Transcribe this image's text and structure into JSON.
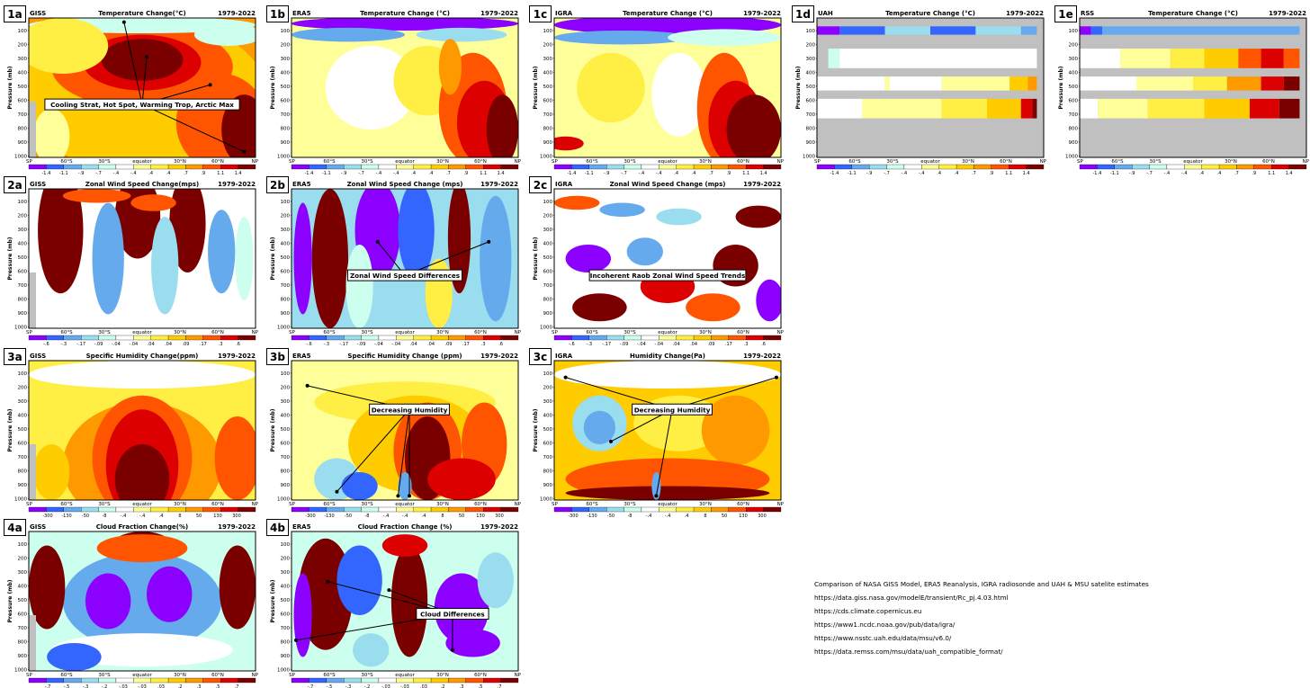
{
  "latitude_ticks": [
    "SP",
    "60°S",
    "30°S",
    "equator",
    "30°N",
    "60°N",
    "NP"
  ],
  "pressure_ticks": [
    "100",
    "200",
    "300",
    "400",
    "500",
    "600",
    "700",
    "800",
    "900",
    "1000"
  ],
  "y_axis_label": "Pressure (mb)",
  "colors": {
    "missing": "#c0c0c0",
    "palette": [
      "#8b00ff",
      "#3366ff",
      "#66aaee",
      "#99ddee",
      "#ccffee",
      "#ffffff",
      "#ffff99",
      "#ffee44",
      "#ffcc00",
      "#ff9900",
      "#ff5500",
      "#dd0000",
      "#7a0000"
    ]
  },
  "panels": [
    {
      "id": "1a",
      "source": "GISS",
      "title": "Temperature Change(°C)",
      "period": "1979-2022",
      "scale_labels": [
        "-1.4",
        "-1.1",
        "-.9",
        "-.7",
        "-.4",
        "-.4",
        ".4",
        ".4",
        ".7",
        ".9",
        "1.1",
        "1.4"
      ],
      "annotation": "Cooling Strat, Hot Spot, Warming Trop, Arctic Max"
    },
    {
      "id": "1b",
      "source": "ERA5",
      "title": "Temperature Change (°C)",
      "period": "1979-2022",
      "scale_labels": [
        "-1.4",
        "-1.1",
        "-.9",
        "-.7",
        "-.4",
        "-.4",
        ".4",
        ".4",
        ".7",
        ".9",
        "1.1",
        "1.4"
      ],
      "annotation": ""
    },
    {
      "id": "1c",
      "source": "IGRA",
      "title": "Temperature Change (°C)",
      "period": "1979-2022",
      "scale_labels": [
        "-1.4",
        "-1.1",
        "-.9",
        "-.7",
        "-.4",
        "-.4",
        ".4",
        ".4",
        ".7",
        ".9",
        "1.1",
        "1.4"
      ],
      "annotation": ""
    },
    {
      "id": "1d",
      "source": "UAH",
      "title": "Temperature Change (°C)",
      "period": "1979-2022",
      "scale_labels": [
        "-1.4",
        "-1.1",
        "-.9",
        "-.7",
        "-.4",
        "-.4",
        ".4",
        ".4",
        ".7",
        ".9",
        "1.1",
        "1.4"
      ],
      "annotation": ""
    },
    {
      "id": "1e",
      "source": "RSS",
      "title": "Temperature Change (°C)",
      "period": "1979-2022",
      "scale_labels": [
        "-1.4",
        "-1.1",
        "-.9",
        "-.7",
        "-.4",
        "-.4",
        ".4",
        ".4",
        ".7",
        ".9",
        "1.1",
        "1.4"
      ],
      "annotation": ""
    },
    {
      "id": "2a",
      "source": "GISS",
      "title": "Zonal Wind Speed Change(mps)",
      "period": "1979-2022",
      "scale_labels": [
        "-.6",
        "-.3",
        "-.17",
        "-.09",
        "-.04",
        "-.04",
        ".04",
        ".04",
        ".09",
        ".17",
        ".3",
        ".6"
      ],
      "annotation": ""
    },
    {
      "id": "2b",
      "source": "ERA5",
      "title": "Zonal Wind Speed Change (mps)",
      "period": "1979-2022",
      "scale_labels": [
        "-.6",
        "-.3",
        "-.17",
        "-.09",
        "-.04",
        "-.04",
        ".04",
        ".04",
        ".09",
        ".17",
        ".3",
        ".6"
      ],
      "annotation": "Zonal Wind Speed Differences"
    },
    {
      "id": "2c",
      "source": "IGRA",
      "title": "Zonal Wind Speed Change (mps)",
      "period": "1979-2022",
      "scale_labels": [
        "-.6",
        "-.3",
        "-.17",
        "-.09",
        "-.04",
        "-.04",
        ".04",
        ".04",
        ".09",
        ".17",
        ".3",
        ".6"
      ],
      "annotation": "Incoherent Raob Zonal Wind Speed Trends"
    },
    {
      "id": "3a",
      "source": "GISS",
      "title": "Specific Humidity Change(ppm)",
      "period": "1979-2022",
      "scale_labels": [
        "-300",
        "-130",
        "-50",
        "-8",
        "-.4",
        "-.4",
        ".4",
        "8",
        "50",
        "130",
        "300"
      ],
      "annotation": ""
    },
    {
      "id": "3b",
      "source": "ERA5",
      "title": "Specific Humidity Change (ppm)",
      "period": "1979-2022",
      "scale_labels": [
        "-300",
        "-130",
        "-50",
        "-8",
        "-.4",
        "-.4",
        ".4",
        "8",
        "50",
        "130",
        "300"
      ],
      "annotation": "Decreasing Humidity"
    },
    {
      "id": "3c",
      "source": "IGRA",
      "title": "Humidity Change(Pa)",
      "period": "1979-2022",
      "scale_labels": [
        "-300",
        "-130",
        "-50",
        "-8",
        "-.4",
        "-.4",
        ".4",
        "8",
        "50",
        "130",
        "300"
      ],
      "annotation": "Decreasing Humidity"
    },
    {
      "id": "4a",
      "source": "GISS",
      "title": "Cloud Fraction Change(%)",
      "period": "1979-2022",
      "scale_labels": [
        "-.7",
        "-.5",
        "-.3",
        "-.2",
        "-.03",
        "-.03",
        ".03",
        ".2",
        ".3",
        ".5",
        ".7"
      ],
      "annotation": ""
    },
    {
      "id": "4b",
      "source": "ERA5",
      "title": "Cloud Fraction Change (%)",
      "period": "1979-2022",
      "scale_labels": [
        "-.7",
        "-.5",
        "-.3",
        "-.2",
        "-.03",
        "-.03",
        ".03",
        ".2",
        ".3",
        ".5",
        ".7"
      ],
      "annotation": "Cloud Differences"
    }
  ],
  "references": [
    "Comparison of NASA GISS Model, ERA5 Reanalysis, IGRA radiosonde and UAH & MSU satelite estimates",
    "https://data.giss.nasa.gov/modelE/transient/Rc_pj.4.03.html",
    "https://cds.climate.copernicus.eu",
    "https://www1.ncdc.noaa.gov/pub/data/igra/",
    "https://www.nsstc.uah.edu/data/msu/v6.0/",
    "https://data.remss.com/msu/data/uah_compatible_format/"
  ]
}
